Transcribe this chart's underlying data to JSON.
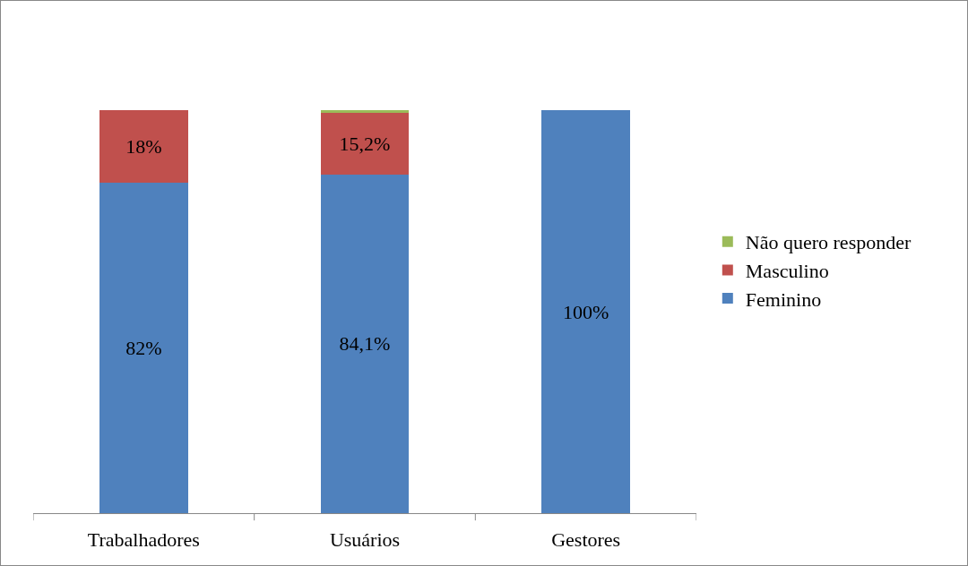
{
  "chart_data": {
    "type": "bar",
    "stacked": true,
    "categories": [
      "Trabalhadores",
      "Usuários",
      "Gestores"
    ],
    "series": [
      {
        "name": "Feminino",
        "color": "#4f81bd",
        "values": [
          82,
          84.1,
          100
        ],
        "value_labels": [
          "82%",
          "84,1%",
          "100%"
        ]
      },
      {
        "name": "Masculino",
        "color": "#c0504d",
        "values": [
          18,
          15.2,
          null
        ],
        "value_labels": [
          "18%",
          "15,2%",
          null
        ]
      },
      {
        "name": "Não quero responder",
        "color": "#9bbb59",
        "values": [
          null,
          0.7,
          null
        ],
        "value_labels": [
          null,
          null,
          null
        ]
      }
    ],
    "legend": "right",
    "tick_labels": "x"
  }
}
